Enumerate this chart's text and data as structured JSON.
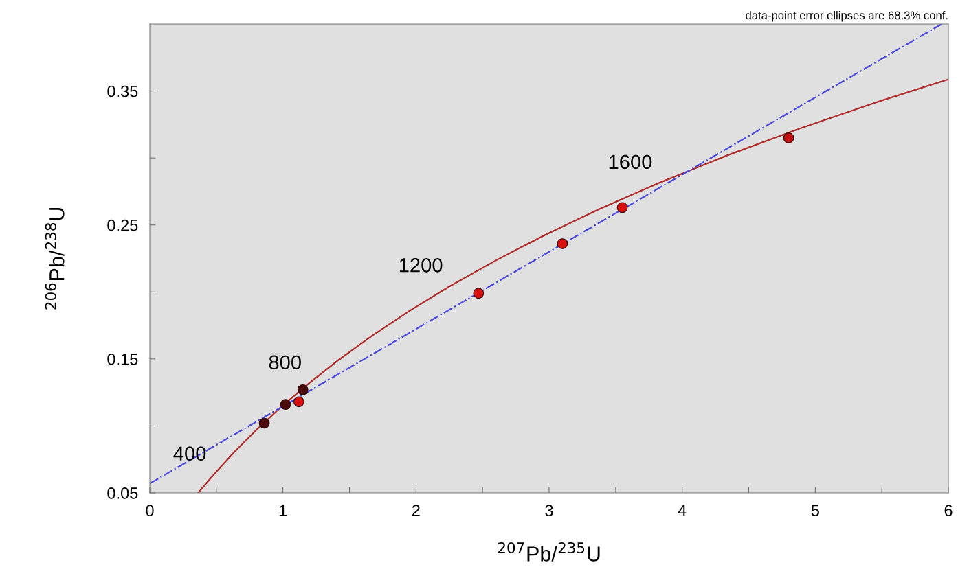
{
  "chart_data": {
    "type": "scatter",
    "xlabel": "$^{207}$Pb/$^{235}$U",
    "ylabel": "$^{206}$Pb/$^{238}$U",
    "xlim": [
      0,
      6
    ],
    "ylim": [
      0.05,
      0.4
    ],
    "xticks": [
      0,
      {
        "value": 0.5,
        "label": null
      },
      1,
      {
        "value": 1.5,
        "label": null
      },
      2,
      {
        "value": 2.5,
        "label": null
      },
      3,
      {
        "value": 3.5,
        "label": null
      },
      4,
      {
        "value": 4.5,
        "label": null
      },
      5,
      {
        "value": 5.5,
        "label": null
      },
      6
    ],
    "yticks": [
      0.05,
      {
        "value": 0.1,
        "label": null
      },
      0.15,
      {
        "value": 0.2,
        "label": null
      },
      0.25,
      {
        "value": 0.3,
        "label": null
      },
      0.35
    ],
    "grid": false,
    "legend": false,
    "series": [
      {
        "type": "line",
        "color": "#b02828",
        "line_style": "solid",
        "marker": "none",
        "x": [
          0.363,
          0.483,
          0.636,
          0.806,
          0.993,
          1.199,
          1.426,
          1.677,
          1.955,
          2.26,
          2.598,
          2.97,
          3.381,
          3.834,
          4.335,
          4.887,
          5.496,
          6.0
        ],
        "values": [
          0.05,
          0.064,
          0.0806,
          0.0975,
          0.1147,
          0.1321,
          0.1498,
          0.1678,
          0.1861,
          0.2046,
          0.2234,
          0.2426,
          0.262,
          0.2817,
          0.3018,
          0.3221,
          0.3428,
          0.3587
        ]
      },
      {
        "type": "line",
        "color": "#4848e0",
        "line_style": "dashdot",
        "marker": "none",
        "x": [
          0,
          5.95
        ],
        "values": [
          0.057,
          0.4
        ]
      },
      {
        "marker": "circle",
        "x": [
          0.86,
          1.02,
          1.12,
          1.15,
          2.47,
          3.1,
          3.55,
          4.8
        ],
        "values": [
          0.102,
          0.116,
          0.118,
          0.127,
          0.199,
          0.236,
          0.263,
          0.315
        ],
        "colors": [
          "#4a0a0a",
          "#4a0a0a",
          "#d81010",
          "#4a0a0a",
          "#d81010",
          "#d81010",
          "#d81010",
          "#c01010"
        ]
      }
    ],
    "annotations": [
      {
        "text": "400",
        "x": 0.483,
        "y": 0.064
      },
      {
        "text": "800",
        "x": 1.199,
        "y": 0.1321
      },
      {
        "text": "1200",
        "x": 2.26,
        "y": 0.2046
      },
      {
        "text": "1600",
        "x": 3.834,
        "y": 0.2817
      },
      "data-point error ellipses are 68.3% conf."
    ]
  }
}
